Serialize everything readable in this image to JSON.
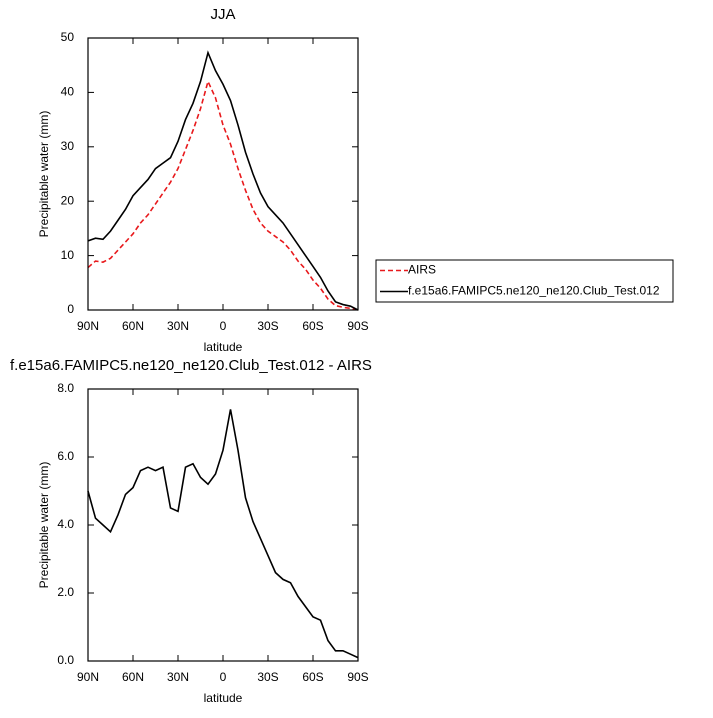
{
  "chart_data": [
    {
      "type": "line",
      "title": "JJA",
      "xlabel": "latitude",
      "ylabel": "Precipitable water (mm)",
      "x": [
        90,
        85,
        80,
        75,
        70,
        65,
        60,
        55,
        50,
        45,
        40,
        35,
        30,
        25,
        20,
        15,
        10,
        5,
        0,
        -5,
        -10,
        -15,
        -20,
        -25,
        -30,
        -35,
        -40,
        -45,
        -50,
        -55,
        -60,
        -65,
        -70,
        -75,
        -80,
        -85,
        -90
      ],
      "series": [
        {
          "name": "AIRS",
          "color": "#e8191c",
          "line_style": "dashed",
          "values": [
            7.8,
            9,
            8.8,
            9.5,
            11,
            12.5,
            14,
            16,
            17.5,
            19.5,
            21.5,
            23.5,
            26,
            29.5,
            33,
            37,
            42,
            39,
            34,
            30.5,
            26,
            22,
            18.5,
            16,
            14.5,
            13.5,
            12.5,
            11,
            9,
            7.5,
            5.5,
            4,
            2,
            0.8,
            0.5,
            0.3,
            0
          ]
        },
        {
          "name": "f.e15a6.FAMIPC5.ne120_ne120.Club_Test.012",
          "color": "#000000",
          "line_style": "solid",
          "values": [
            12.7,
            13.2,
            13,
            14.5,
            16.5,
            18.5,
            21,
            22.5,
            24,
            26,
            27,
            28,
            31,
            35,
            38,
            42,
            47.3,
            44,
            41.5,
            38.5,
            34,
            29,
            25,
            21.5,
            19,
            17.5,
            16,
            14,
            12,
            10,
            8,
            6,
            3.5,
            1.5,
            1,
            0.7,
            0
          ]
        }
      ],
      "xlim": [
        90,
        -90
      ],
      "ylim": [
        0,
        50
      ],
      "xticks": [
        {
          "value": 90,
          "label": "90N"
        },
        {
          "value": 60,
          "label": "60N"
        },
        {
          "value": 30,
          "label": "30N"
        },
        0,
        {
          "value": -30,
          "label": "30S"
        },
        {
          "value": -60,
          "label": "60S"
        },
        {
          "value": -90,
          "label": "90S"
        }
      ],
      "yticks": [
        0,
        10,
        20,
        30,
        40,
        50
      ],
      "legend": "right"
    },
    {
      "type": "line",
      "title": "f.e15a6.FAMIPC5.ne120_ne120.Club_Test.012 - AIRS",
      "xlabel": "latitude",
      "ylabel": "Precipitable water (mm)",
      "x": [
        90,
        85,
        80,
        75,
        70,
        65,
        60,
        55,
        50,
        45,
        40,
        35,
        30,
        25,
        20,
        15,
        10,
        5,
        0,
        -5,
        -10,
        -15,
        -20,
        -25,
        -30,
        -35,
        -40,
        -45,
        -50,
        -55,
        -60,
        -65,
        -70,
        -75,
        -80,
        -85,
        -90
      ],
      "series": [
        {
          "color": "#000000",
          "line_style": "solid",
          "values": [
            5.0,
            4.2,
            4.0,
            3.8,
            4.3,
            4.9,
            5.1,
            5.6,
            5.7,
            5.6,
            5.7,
            4.5,
            4.4,
            5.7,
            5.8,
            5.4,
            5.2,
            5.5,
            6.2,
            7.4,
            6.2,
            4.8,
            4.1,
            3.6,
            3.1,
            2.6,
            2.4,
            2.3,
            1.9,
            1.6,
            1.3,
            1.2,
            0.6,
            0.3,
            0.3,
            0.2,
            0.1
          ]
        }
      ],
      "xlim": [
        90,
        -90
      ],
      "ylim": [
        0,
        8
      ],
      "xticks": [
        {
          "value": 90,
          "label": "90N"
        },
        {
          "value": 60,
          "label": "60N"
        },
        {
          "value": 30,
          "label": "30N"
        },
        0,
        {
          "value": -30,
          "label": "30S"
        },
        {
          "value": -60,
          "label": "60S"
        },
        {
          "value": -90,
          "label": "90S"
        }
      ],
      "yticks": [
        {
          "value": 0,
          "label": "0.0"
        },
        {
          "value": 2,
          "label": "2.0"
        },
        {
          "value": 4,
          "label": "4.0"
        },
        {
          "value": 6,
          "label": "6.0"
        },
        {
          "value": 8,
          "label": "8.0"
        }
      ]
    }
  ]
}
